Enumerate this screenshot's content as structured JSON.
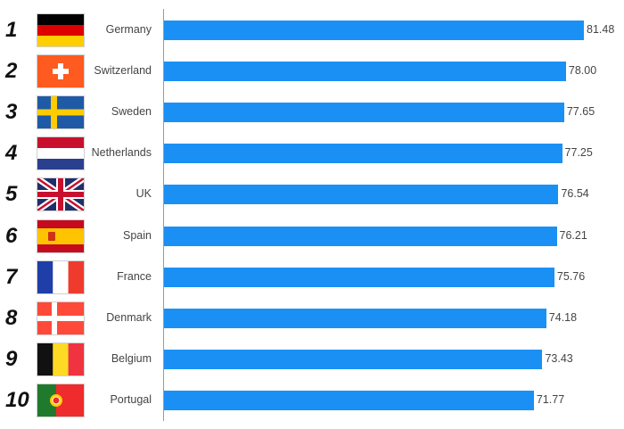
{
  "chart_data": {
    "type": "bar",
    "orientation": "horizontal",
    "title": "",
    "xlabel": "",
    "ylabel": "",
    "xlim": [
      0,
      81.48
    ],
    "grid": false,
    "legend": "none",
    "bar_color": "#1b90f4",
    "categories": [
      "Germany",
      "Switzerland",
      "Sweden",
      "Netherlands",
      "UK",
      "Spain",
      "France",
      "Denmark",
      "Belgium",
      "Portugal"
    ],
    "ranks": [
      "1",
      "2",
      "3",
      "4",
      "5",
      "6",
      "7",
      "8",
      "9",
      "10"
    ],
    "values": [
      81.48,
      78.0,
      77.65,
      77.25,
      76.54,
      76.21,
      75.76,
      74.18,
      73.43,
      71.77
    ],
    "value_labels": [
      "81.48",
      "78.00",
      "77.65",
      "77.25",
      "76.54",
      "76.21",
      "75.76",
      "74.18",
      "73.43",
      "71.77"
    ],
    "flags": [
      "germany-flag",
      "switzerland-flag",
      "sweden-flag",
      "netherlands-flag",
      "uk-flag",
      "spain-flag",
      "france-flag",
      "denmark-flag",
      "belgium-flag",
      "portugal-flag"
    ]
  }
}
